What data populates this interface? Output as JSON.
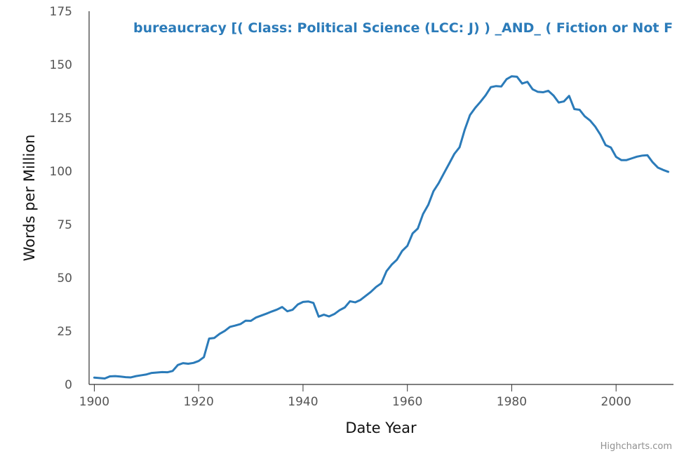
{
  "chart_data": {
    "type": "line",
    "title": "bureaucracy [( Class: Political Science (LCC: J) ) _AND_ ( Fiction or Not F",
    "xlabel": "Date Year",
    "ylabel": "Words per Million",
    "xlim": [
      1899,
      2011
    ],
    "ylim": [
      0,
      175
    ],
    "x_ticks": [
      "1900",
      "1920",
      "1940",
      "1960",
      "1980",
      "2000"
    ],
    "y_ticks": [
      "0",
      "25",
      "50",
      "75",
      "100",
      "125",
      "150",
      "175"
    ],
    "grid": false,
    "legend": "none",
    "line_color": "#2b7bb9",
    "series": [
      {
        "x": [
          1900,
          1901,
          1902,
          1903,
          1904,
          1905,
          1906,
          1907,
          1908,
          1909,
          1910,
          1911,
          1912,
          1913,
          1914,
          1915,
          1916,
          1917,
          1918,
          1919,
          1920,
          1921,
          1922,
          1923,
          1924,
          1925,
          1926,
          1927,
          1928,
          1929,
          1930,
          1931,
          1932,
          1933,
          1934,
          1935,
          1936,
          1937,
          1938,
          1939,
          1940,
          1941,
          1942,
          1943,
          1944,
          1945,
          1946,
          1947,
          1948,
          1949,
          1950,
          1951,
          1952,
          1953,
          1954,
          1955,
          1956,
          1957,
          1958,
          1959,
          1960,
          1961,
          1962,
          1963,
          1964,
          1965,
          1966,
          1967,
          1968,
          1969,
          1970,
          1971,
          1972,
          1973,
          1974,
          1975,
          1976,
          1977,
          1978,
          1979,
          1980,
          1981,
          1982,
          1983,
          1984,
          1985,
          1986,
          1987,
          1988,
          1989,
          1990,
          1991,
          1992,
          1993,
          1994,
          1995,
          1996,
          1997,
          1998,
          1999,
          2000,
          2001,
          2002,
          2003,
          2004,
          2005,
          2006,
          2007,
          2008,
          2009,
          2010
        ],
        "values": [
          3.2,
          3.0,
          2.8,
          3.8,
          3.9,
          3.7,
          3.4,
          3.3,
          3.9,
          4.3,
          4.7,
          5.4,
          5.6,
          5.8,
          5.7,
          6.3,
          9.1,
          10.0,
          9.7,
          10.1,
          11.0,
          12.8,
          21.5,
          21.8,
          23.7,
          25.1,
          27.0,
          27.6,
          28.3,
          29.9,
          29.8,
          31.4,
          32.3,
          33.2,
          34.2,
          35.1,
          36.3,
          34.3,
          35.0,
          37.5,
          38.7,
          38.9,
          38.2,
          31.8,
          32.7,
          31.9,
          33.0,
          34.8,
          36.1,
          39.0,
          38.5,
          39.6,
          41.5,
          43.4,
          45.7,
          47.4,
          53.1,
          56.2,
          58.5,
          62.6,
          65.0,
          70.8,
          73.1,
          79.9,
          84.2,
          90.6,
          94.4,
          99.0,
          103.5,
          108.1,
          111.2,
          119.5,
          126.3,
          129.7,
          132.5,
          135.6,
          139.4,
          139.9,
          139.7,
          143.1,
          144.5,
          144.3,
          141.1,
          141.9,
          138.4,
          137.2,
          137.0,
          137.7,
          135.5,
          132.2,
          132.7,
          135.3,
          129.1,
          128.8,
          125.7,
          123.8,
          120.9,
          117.1,
          112.2,
          111.1,
          106.7,
          105.2,
          105.2,
          106.0,
          106.8,
          107.3,
          107.5,
          104.2,
          101.7,
          100.6,
          99.7
        ]
      }
    ]
  },
  "credits": "Highcharts.com"
}
